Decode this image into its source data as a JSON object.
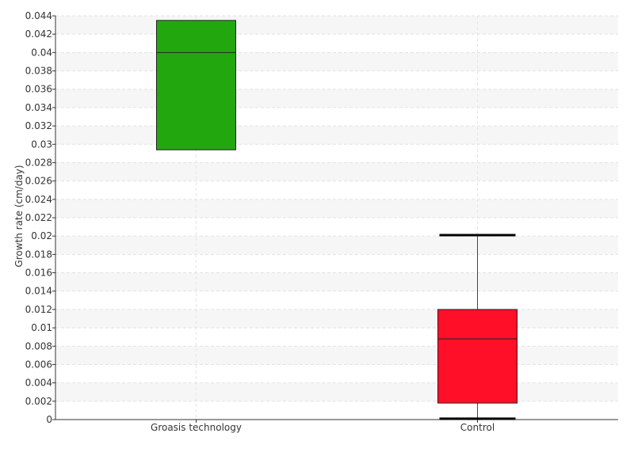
{
  "chart_data": {
    "type": "box",
    "title": "",
    "xlabel": "",
    "ylabel": "Growth rate (cm/day)",
    "ylim": [
      0,
      0.044
    ],
    "y_ticks": [
      0,
      0.002,
      0.004,
      0.006,
      0.008,
      0.01,
      0.012,
      0.014,
      0.016,
      0.018,
      0.02,
      0.022,
      0.024,
      0.026,
      0.028,
      0.03,
      0.032,
      0.034,
      0.036,
      0.038,
      0.04,
      0.042,
      0.044
    ],
    "y_tick_labels": [
      "0",
      "0.002",
      "0.004",
      "0.006",
      "0.008",
      "0.01",
      "0.012",
      "0.014",
      "0.016",
      "0.018",
      "0.02",
      "0.022",
      "0.024",
      "0.026",
      "0.028",
      "0.03",
      "0.032",
      "0.034",
      "0.036",
      "0.038",
      "0.04",
      "0.042",
      "0.044"
    ],
    "grid": true,
    "categories": [
      "Groasis technology",
      "Control"
    ],
    "boxes": [
      {
        "category": "Groasis technology",
        "min": 0.0294,
        "q1": 0.0294,
        "median": 0.04,
        "q3": 0.0435,
        "max": 0.0435,
        "color": "#22a70e"
      },
      {
        "category": "Control",
        "min": 0.0001,
        "q1": 0.0018,
        "median": 0.0088,
        "q3": 0.012,
        "max": 0.0201,
        "color": "#ff0f28"
      }
    ]
  }
}
